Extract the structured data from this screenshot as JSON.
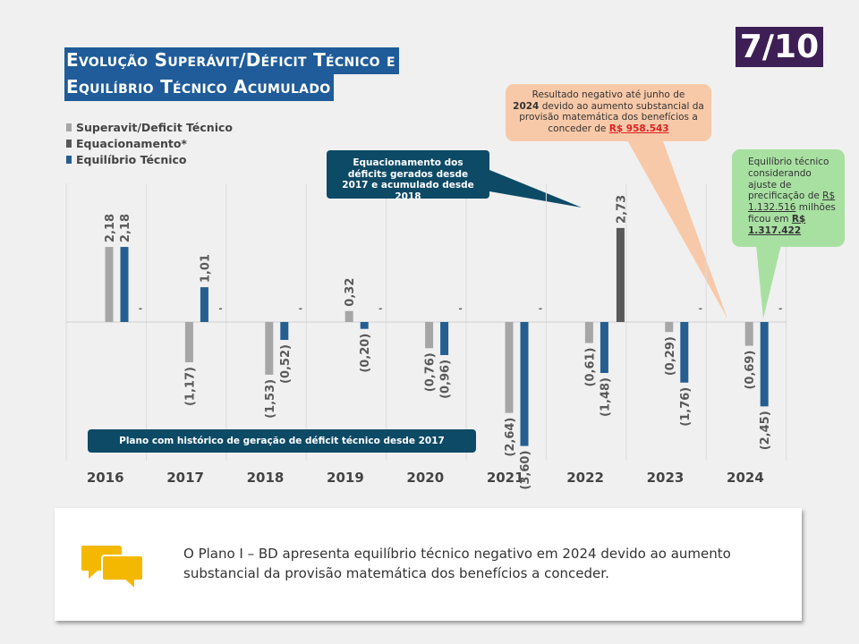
{
  "title_line1": "Evolução Superávit/Déficit Técnico e",
  "title_line2": "Equilíbrio Técnico Acumulado",
  "page_number": "7/10",
  "legend": [
    {
      "label": "Superavit/Deficit Técnico",
      "color": "#a6a6a6"
    },
    {
      "label": "Equacionamento*",
      "color": "#595959"
    },
    {
      "label": "Equilíbrio Técnico",
      "color": "#255e91"
    }
  ],
  "chart_data": {
    "type": "bar",
    "categories": [
      "2016",
      "2017",
      "2018",
      "2019",
      "2020",
      "2021",
      "2022",
      "2023",
      "2024"
    ],
    "series": [
      {
        "name": "Superavit/Deficit Técnico",
        "values": [
          2.18,
          -1.17,
          -1.53,
          0.32,
          -0.76,
          -2.64,
          -0.61,
          -0.29,
          -0.69
        ],
        "labels": [
          "2,18",
          "(1,17)",
          "(1,53)",
          "0,32",
          "(0,76)",
          "(2,64)",
          "(0,61)",
          "(0,29)",
          "(0,69)"
        ]
      },
      {
        "name": "Equacionamento*",
        "values": [
          0,
          0,
          0,
          0,
          0,
          0,
          2.73,
          0,
          0
        ],
        "labels": [
          "-",
          "-",
          "-",
          "-",
          "-",
          "-",
          "2,73",
          "-",
          "-"
        ]
      },
      {
        "name": "Equilíbrio Técnico",
        "values": [
          2.18,
          1.01,
          -0.52,
          -0.2,
          -0.96,
          -3.6,
          -1.48,
          -1.76,
          -2.45
        ],
        "labels": [
          "2,18",
          "1,01",
          "(0,52)",
          "(0,20)",
          "(0,96)",
          "(3,60)",
          "(1,48)",
          "(1,76)",
          "(2,45)"
        ]
      }
    ],
    "colors": [
      "#a6a6a6",
      "#595959",
      "#255e91"
    ],
    "ylim": [
      -4,
      4
    ],
    "grid": "vertical",
    "legend": "top-left"
  },
  "callout_equacionamento": "Equacionamento dos déficits gerados desde 2017 e acumulado desde 2018",
  "callout_resultado": {
    "t1": "Resultado negativo até junho de",
    "year": "2024",
    "t2": "devido ao aumento substancial da provisão matemática dos benefícios a conceder de",
    "value": "R$ 958.543"
  },
  "callout_equilibrio": {
    "t1": "Equilíbrio técnico considerando ajuste de precificação de",
    "value1": "R$ 1.132.516",
    "t2": "milhões ficou em",
    "value2": "R$ 1.317.422"
  },
  "band_label": "Plano com histórico de geração de déficit técnico desde 2017",
  "note_text": "O Plano I – BD apresenta equilíbrio técnico negativo em 2024 devido ao aumento substancial da provisão matemática dos benefícios a conceder."
}
